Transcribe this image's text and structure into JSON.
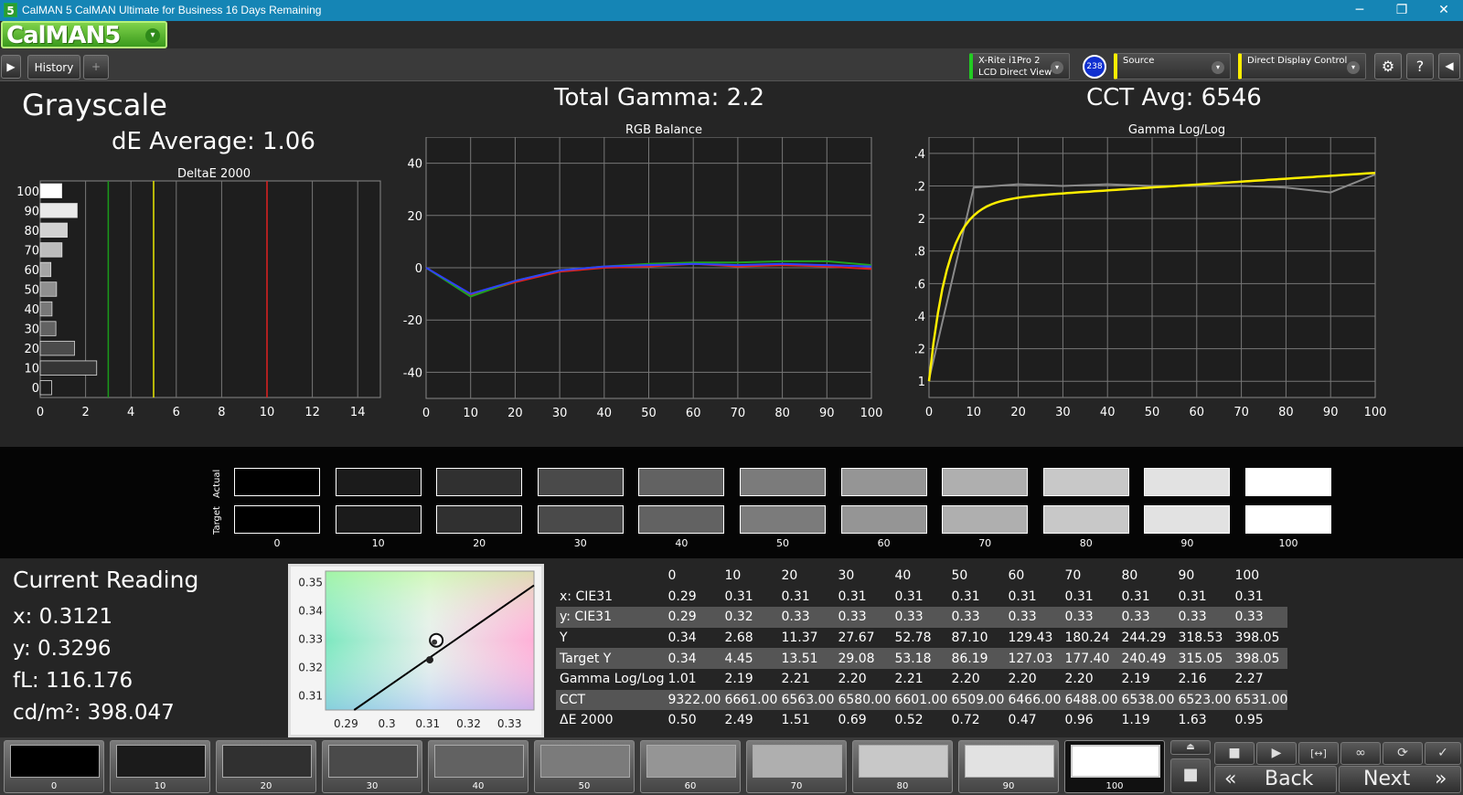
{
  "titlebar": {
    "app_icon": "5",
    "title": "CalMAN 5 CalMAN Ultimate for Business 16 Days Remaining",
    "min_icon": "─",
    "max_icon": "❐",
    "close_icon": "✕"
  },
  "logo": {
    "text": "CalMAN5",
    "dropdown_icon": "▾"
  },
  "tabs": {
    "play_icon": "▶",
    "history_label": "History 1",
    "add_icon": "+"
  },
  "devices": {
    "meter": {
      "line1": "X-Rite i1Pro 2",
      "line2": "LCD Direct View",
      "badge": "238",
      "accent": "#22cc22"
    },
    "source": {
      "label": "Source",
      "accent": "#ffee00"
    },
    "display": {
      "label": "Direct Display Control",
      "accent": "#ffee00"
    },
    "dropdown_icon": "▾",
    "settings_icon": "⚙",
    "help_icon": "?",
    "collapse_icon": "◀"
  },
  "summary": {
    "title": "Grayscale",
    "de_average": "dE Average: 1.06",
    "total_gamma": "Total Gamma: 2.2",
    "cct_avg": "CCT Avg: 6546"
  },
  "charts": {
    "deltae": {
      "title": "DeltaE 2000",
      "x_ticks": [
        "0",
        "2",
        "4",
        "6",
        "8",
        "10",
        "12",
        "14"
      ],
      "y_labels": [
        "100",
        "90",
        "80",
        "70",
        "60",
        "50",
        "40",
        "30",
        "20",
        "10",
        "0"
      ]
    },
    "rgb": {
      "title": "RGB Balance",
      "x_ticks": [
        "0",
        "10",
        "20",
        "30",
        "40",
        "50",
        "60",
        "70",
        "80",
        "90",
        "100"
      ],
      "y_ticks": [
        "40",
        "20",
        "0",
        "-20",
        "-40"
      ]
    },
    "gamma": {
      "title": "Gamma Log/Log",
      "x_ticks": [
        "0",
        "10",
        "20",
        "30",
        "40",
        "50",
        "60",
        "70",
        "80",
        "90",
        "100"
      ],
      "y_ticks": [
        "2.4",
        "2.2",
        "2",
        "1.8",
        "1.6",
        "1.4",
        "1.2",
        "1"
      ]
    },
    "cie": {
      "x_ticks": [
        "0.29",
        "0.3",
        "0.31",
        "0.32",
        "0.33"
      ],
      "y_ticks": [
        "0.35",
        "0.34",
        "0.33",
        "0.32",
        "0.31"
      ]
    }
  },
  "chart_data": [
    {
      "type": "bar",
      "title": "DeltaE 2000",
      "orientation": "horizontal",
      "categories": [
        "0",
        "10",
        "20",
        "30",
        "40",
        "50",
        "60",
        "70",
        "80",
        "90",
        "100"
      ],
      "values": [
        0.5,
        2.49,
        1.51,
        0.69,
        0.52,
        0.72,
        0.47,
        0.96,
        1.19,
        1.63,
        0.95
      ],
      "xlim": [
        0,
        15
      ],
      "thresholds": [
        {
          "value": 3,
          "color": "#1a9a1a"
        },
        {
          "value": 5,
          "color": "#e8e800"
        },
        {
          "value": 10,
          "color": "#e02020"
        }
      ]
    },
    {
      "type": "line",
      "title": "RGB Balance",
      "x": [
        0,
        10,
        20,
        30,
        40,
        50,
        60,
        70,
        80,
        90,
        100
      ],
      "ylim": [
        -50,
        50
      ],
      "series": [
        {
          "color": "#e02020",
          "values": [
            0,
            -10.5,
            -5.5,
            -1.5,
            0,
            0.5,
            1.5,
            0.5,
            1.0,
            0.5,
            -0.5
          ]
        },
        {
          "color": "#20a020",
          "values": [
            0,
            -11,
            -5,
            -1,
            0.5,
            1.5,
            2,
            2,
            2.5,
            2.5,
            1
          ]
        },
        {
          "color": "#3040ff",
          "values": [
            0,
            -10,
            -5,
            -1,
            0.5,
            1,
            1.5,
            1,
            1.5,
            1,
            0.5
          ]
        }
      ]
    },
    {
      "type": "line",
      "title": "Gamma Log/Log",
      "x": [
        0,
        10,
        20,
        30,
        40,
        50,
        60,
        70,
        80,
        90,
        100
      ],
      "ylim": [
        0.9,
        2.5
      ],
      "series": [
        {
          "color": "#8a8a8a",
          "values": [
            1.01,
            2.19,
            2.21,
            2.2,
            2.21,
            2.2,
            2.2,
            2.2,
            2.19,
            2.16,
            2.27
          ]
        },
        {
          "color": "#ffee00",
          "curve": "target",
          "values": [
            1.0,
            1.92,
            2.05,
            2.11,
            2.15,
            2.18,
            2.2,
            2.22,
            2.24,
            2.26,
            2.27
          ]
        }
      ]
    },
    {
      "type": "scatter",
      "title": "",
      "xlim": [
        0.285,
        0.336
      ],
      "ylim": [
        0.305,
        0.354
      ],
      "points": [
        {
          "x": 0.3121,
          "y": 0.3296
        },
        {
          "x": 0.3105,
          "y": 0.3227
        }
      ],
      "locus": [
        [
          0.292,
          0.305
        ],
        [
          0.336,
          0.349
        ]
      ]
    }
  ],
  "swatches": {
    "actual_label": "Actual",
    "target_label": "Target",
    "items": [
      {
        "label": "0",
        "actual": "#000000",
        "target": "#000000"
      },
      {
        "label": "10",
        "actual": "#1b1b1b",
        "target": "#1b1b1b"
      },
      {
        "label": "20",
        "actual": "#303030",
        "target": "#303030"
      },
      {
        "label": "30",
        "actual": "#4a4a4a",
        "target": "#4a4a4a"
      },
      {
        "label": "40",
        "actual": "#626262",
        "target": "#626262"
      },
      {
        "label": "50",
        "actual": "#7b7b7b",
        "target": "#7b7b7b"
      },
      {
        "label": "60",
        "actual": "#959595",
        "target": "#959595"
      },
      {
        "label": "70",
        "actual": "#afafaf",
        "target": "#afafaf"
      },
      {
        "label": "80",
        "actual": "#c8c8c8",
        "target": "#c8c8c8"
      },
      {
        "label": "90",
        "actual": "#e2e2e2",
        "target": "#e2e2e2"
      },
      {
        "label": "100",
        "actual": "#ffffff",
        "target": "#ffffff"
      }
    ]
  },
  "reading": {
    "title": "Current Reading",
    "x": "x: 0.3121",
    "y": "y: 0.3296",
    "fl": "fL: 116.176",
    "cdm2": "cd/m²: 398.047"
  },
  "table": {
    "columns": [
      "",
      "0",
      "10",
      "20",
      "30",
      "40",
      "50",
      "60",
      "70",
      "80",
      "90",
      "100"
    ],
    "rows": [
      [
        "x: CIE31",
        "0.29",
        "0.31",
        "0.31",
        "0.31",
        "0.31",
        "0.31",
        "0.31",
        "0.31",
        "0.31",
        "0.31",
        "0.31"
      ],
      [
        "y: CIE31",
        "0.29",
        "0.32",
        "0.33",
        "0.33",
        "0.33",
        "0.33",
        "0.33",
        "0.33",
        "0.33",
        "0.33",
        "0.33"
      ],
      [
        "Y",
        "0.34",
        "2.68",
        "11.37",
        "27.67",
        "52.78",
        "87.10",
        "129.43",
        "180.24",
        "244.29",
        "318.53",
        "398.05"
      ],
      [
        "Target Y",
        "0.34",
        "4.45",
        "13.51",
        "29.08",
        "53.18",
        "86.19",
        "127.03",
        "177.40",
        "240.49",
        "315.05",
        "398.05"
      ],
      [
        "Gamma Log/Log",
        "1.01",
        "2.19",
        "2.21",
        "2.20",
        "2.21",
        "2.20",
        "2.20",
        "2.20",
        "2.19",
        "2.16",
        "2.27"
      ],
      [
        "CCT",
        "9322.00",
        "6661.00",
        "6563.00",
        "6580.00",
        "6601.00",
        "6509.00",
        "6466.00",
        "6488.00",
        "6538.00",
        "6523.00",
        "6531.00"
      ],
      [
        "ΔE 2000",
        "0.50",
        "2.49",
        "1.51",
        "0.69",
        "0.52",
        "0.72",
        "0.47",
        "0.96",
        "1.19",
        "1.63",
        "0.95"
      ]
    ]
  },
  "patches": [
    {
      "label": "0",
      "color": "#000000"
    },
    {
      "label": "10",
      "color": "#1b1b1b"
    },
    {
      "label": "20",
      "color": "#303030"
    },
    {
      "label": "30",
      "color": "#4a4a4a"
    },
    {
      "label": "40",
      "color": "#626262"
    },
    {
      "label": "50",
      "color": "#7b7b7b"
    },
    {
      "label": "60",
      "color": "#959595"
    },
    {
      "label": "70",
      "color": "#afafaf"
    },
    {
      "label": "80",
      "color": "#c8c8c8"
    },
    {
      "label": "90",
      "color": "#e2e2e2"
    },
    {
      "label": "100",
      "color": "#ffffff"
    }
  ],
  "controls": {
    "stop_icon": "■",
    "play_icon": "▶",
    "range_icon": "[↔]",
    "loop_icon": "∞",
    "refresh_icon": "⟳",
    "check_icon": "✓",
    "eject_icon": "⏏",
    "record_icon": "■",
    "back_label": "Back",
    "next_label": "Next",
    "back_icon": "«",
    "next_icon": "»"
  }
}
